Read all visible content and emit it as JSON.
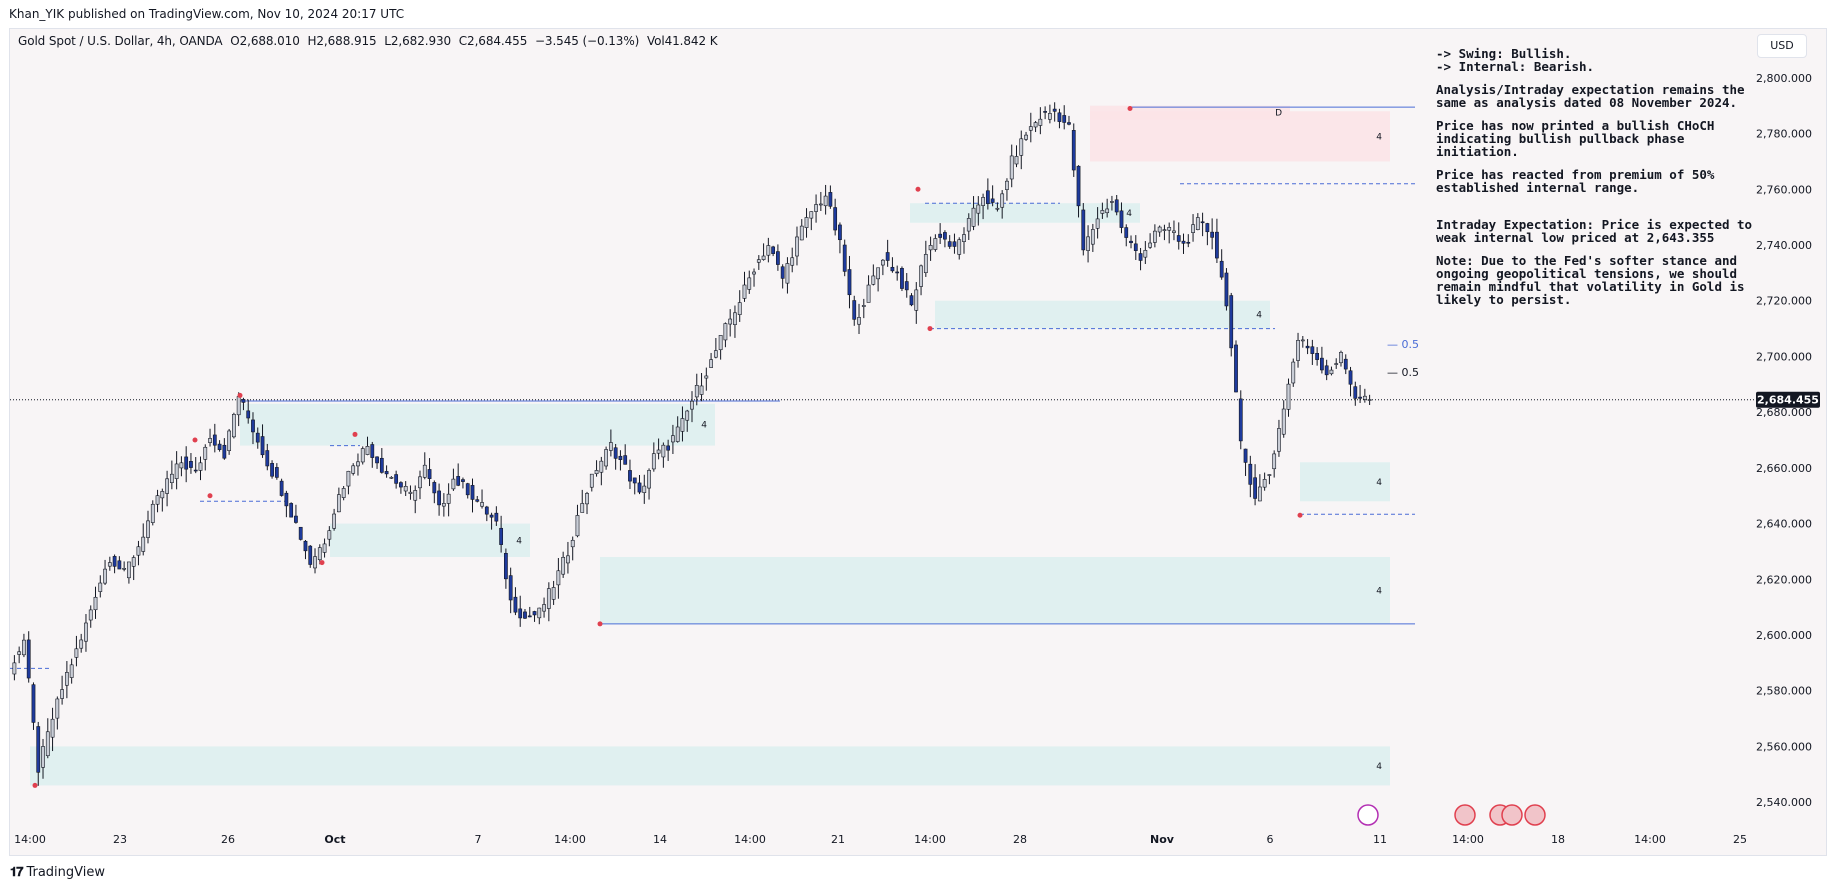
{
  "header": {
    "publisher": "Khan_YIK published on TradingView.com, Nov 10, 2024 20:17 UTC"
  },
  "symbol": {
    "name": "Gold Spot / U.S. Dollar, 4h, OANDA",
    "open": "O2,688.010",
    "high": "H2,688.915",
    "low": "L2,682.930",
    "close": "C2,684.455",
    "change": "−3.545 (−0.13%)",
    "volume": "Vol41.842 K"
  },
  "currency_badge": "USD",
  "notes": {
    "swing": "-> Swing:  Bullish.",
    "internal": "-> Internal:  Bearish.",
    "p1": "Analysis/Intraday expectation remains the same as analysis dated 08 November 2024.",
    "p2": "Price has now printed a bullish CHoCH indicating bullish pullback phase initiation.",
    "p3": "Price has reacted from premium of 50% established internal range.",
    "p4": "Intraday Expectation: Price is expected to weak internal low priced at 2,643.355",
    "p5": "Note: Due to the Fed's softer stance and ongoing geopolitical tensions, we should remain mindful that volatility in Gold is likely to persist."
  },
  "footer": {
    "brand": "TradingView",
    "logo_icon": "tradingview-logo-icon"
  },
  "colors": {
    "bull": "#c9cdd6",
    "bear": "#1e3a9c",
    "zone": "#dcefef",
    "supply": "#fbe3e6",
    "level": "#4a6cd6",
    "swing_dot": "#e0404f",
    "price_label": "#131722"
  },
  "chart_data": {
    "type": "candlestick",
    "title": "",
    "ylim": [
      2530,
      2810
    ],
    "y_ticks": [
      "2,540.000",
      "2,560.000",
      "2,580.000",
      "2,600.000",
      "2,620.000",
      "2,640.000",
      "2,660.000",
      "2,680.000",
      "2,700.000",
      "2,720.000",
      "2,740.000",
      "2,760.000",
      "2,780.000",
      "2,800.000"
    ],
    "x_ticks": [
      "14:00",
      "23",
      "26",
      "Oct",
      "7",
      "14:00",
      "14",
      "14:00",
      "21",
      "14:00",
      "28",
      "Nov",
      "6",
      "11",
      "14:00",
      "18",
      "14:00",
      "25"
    ],
    "current_price": "2,684.455",
    "last_price_value": 2684.455,
    "anchors": [
      2588,
      2598,
      2552,
      2570,
      2586,
      2598,
      2615,
      2628,
      2622,
      2632,
      2645,
      2655,
      2662,
      2658,
      2672,
      2665,
      2686,
      2674,
      2662,
      2652,
      2640,
      2626,
      2634,
      2650,
      2662,
      2668,
      2660,
      2655,
      2650,
      2660,
      2645,
      2656,
      2652,
      2646,
      2640,
      2612,
      2606,
      2608,
      2618,
      2630,
      2648,
      2660,
      2668,
      2660,
      2650,
      2664,
      2668,
      2676,
      2688,
      2698,
      2710,
      2720,
      2732,
      2740,
      2728,
      2742,
      2752,
      2758,
      2740,
      2712,
      2724,
      2736,
      2730,
      2718,
      2738,
      2744,
      2738,
      2748,
      2758,
      2752,
      2770,
      2780,
      2786,
      2788,
      2782,
      2738,
      2750,
      2756,
      2742,
      2736,
      2744,
      2746,
      2740,
      2748,
      2744,
      2720,
      2668,
      2650,
      2658,
      2682,
      2706,
      2702,
      2694,
      2700,
      2686,
      2684.455
    ],
    "annotations": {
      "fib_05_swing": "0.5",
      "fib_05_internal": "0.5",
      "zone_labels": [
        "4",
        "4",
        "4",
        "4",
        "4",
        "4",
        "4",
        "4",
        "D"
      ]
    },
    "zones": [
      {
        "kind": "demand",
        "y1": 2560,
        "y2": 2546,
        "label": "4"
      },
      {
        "kind": "demand",
        "y1": 2628,
        "y2": 2604,
        "label": "4"
      },
      {
        "kind": "demand",
        "y1": 2662,
        "y2": 2648,
        "label": "4"
      },
      {
        "kind": "demand",
        "y1": 2720,
        "y2": 2710,
        "label": "4"
      },
      {
        "kind": "demand",
        "y1": 2755,
        "y2": 2748,
        "label": "4"
      },
      {
        "kind": "demand",
        "y1": 2683,
        "y2": 2668,
        "label": "4"
      },
      {
        "kind": "demand",
        "y1": 2640,
        "y2": 2628,
        "label": "4"
      },
      {
        "kind": "supply",
        "y1": 2788,
        "y2": 2770,
        "label": "D"
      },
      {
        "kind": "supply-top",
        "y1": 2790,
        "y2": 2785,
        "label": "4"
      }
    ],
    "levels": [
      2789.5,
      2762,
      2643.355,
      2604,
      2684,
      2755,
      2710,
      2588,
      2668,
      2648
    ]
  }
}
